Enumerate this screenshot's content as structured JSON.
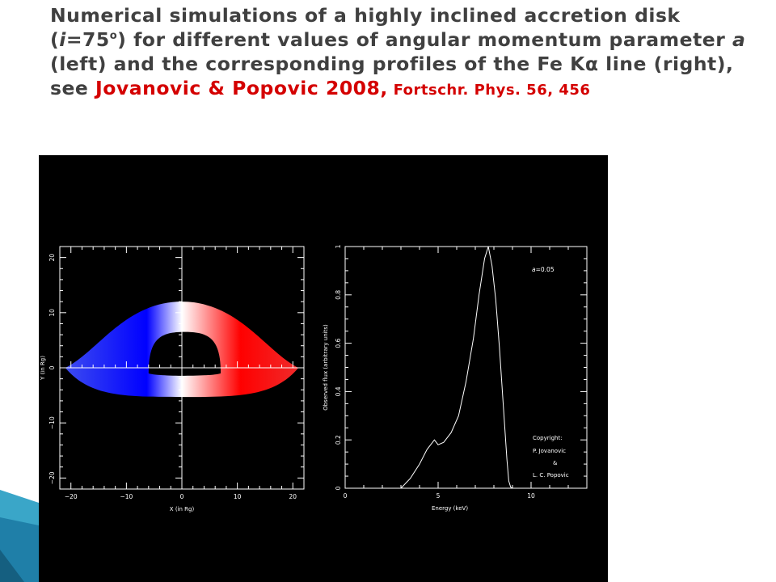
{
  "slide": {
    "title": {
      "part1": "Numerical simulations of a highly inclined accretion disk (",
      "incl_symbol": "i",
      "incl_value": "=75",
      "incl_sup": "o",
      "part2": ") for different values of angular momentum parameter ",
      "param_symbol": "a",
      "part3": " (left) and the corresponding profiles of the Fe Kα line (right), see ",
      "reference": "Jovanovic & Popovic 2008,",
      "journal": " Fortschr. Phys. 56, 456"
    },
    "colors": {
      "title_text": "#404040",
      "reference": "#d40000",
      "panel_bg": "#000000",
      "accent": "#3aa6c8"
    }
  },
  "chart_data": [
    {
      "type": "image",
      "description_role": "accretion disk image",
      "xlabel": "X (in Rg)",
      "ylabel": "Y (in Rg)",
      "xlim": [
        -22,
        22
      ],
      "ylim": [
        -22,
        22
      ],
      "xticks": [
        -20,
        -10,
        0,
        10,
        20
      ],
      "yticks": [
        -20,
        -10,
        0,
        10,
        20
      ],
      "colors": {
        "approaching": "#0000ff",
        "receding": "#ff0000",
        "center": "#ffffff"
      },
      "disk": {
        "outer_left_x": -21,
        "outer_right_x": 21,
        "outer_top_y": 12,
        "outer_bottom_y": -5,
        "hole_left_x": -6,
        "hole_right_x": 7,
        "hole_top_y": 6.5,
        "hole_bottom_y": -1
      }
    },
    {
      "type": "line",
      "xlabel": "Energy (keV)",
      "ylabel": "Observed flux (arbitrary units)",
      "xlim": [
        0,
        13
      ],
      "ylim": [
        0,
        1
      ],
      "xticks": [
        0,
        5,
        10
      ],
      "yticks": [
        0,
        0.2,
        0.4,
        0.6,
        0.8,
        1
      ],
      "annotation": {
        "symbol": "a",
        "text": "=0.05"
      },
      "copyright": [
        "Copyright:",
        "P. Jovanovic",
        "&",
        "L. C. Popovic"
      ],
      "series": [
        {
          "x": [
            3.0,
            3.5,
            4.0,
            4.4,
            4.7,
            4.8,
            5.0,
            5.3,
            5.7,
            6.1,
            6.5,
            6.9,
            7.2,
            7.5,
            7.7,
            7.9,
            8.1,
            8.3,
            8.5,
            8.7,
            8.8,
            8.9,
            9.0
          ],
          "y": [
            0.0,
            0.04,
            0.1,
            0.16,
            0.19,
            0.2,
            0.18,
            0.19,
            0.23,
            0.3,
            0.44,
            0.62,
            0.8,
            0.95,
            1.0,
            0.92,
            0.78,
            0.58,
            0.35,
            0.12,
            0.03,
            0.005,
            0.0
          ]
        }
      ]
    }
  ]
}
